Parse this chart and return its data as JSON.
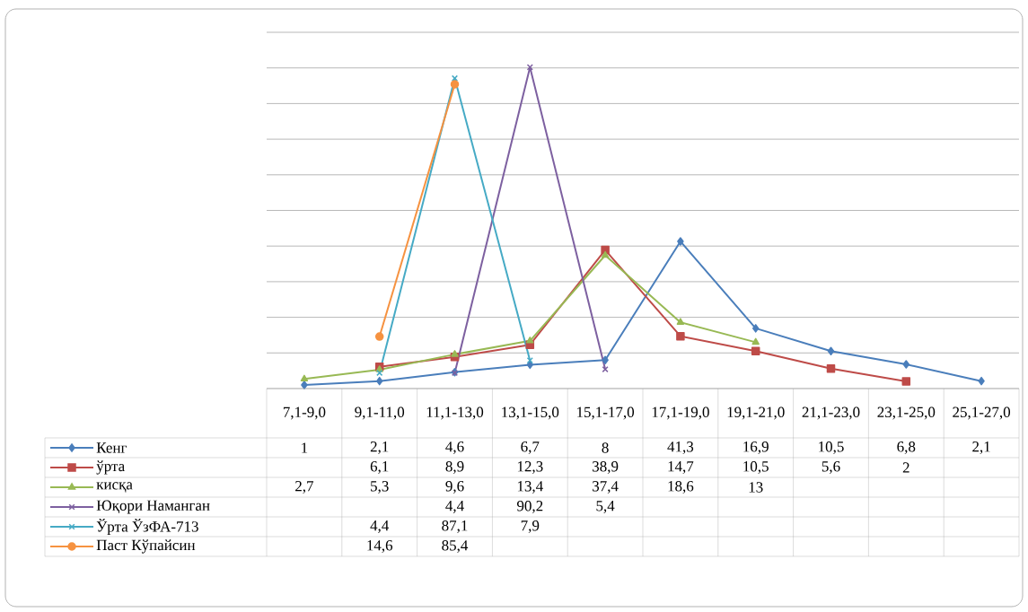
{
  "chart_data": {
    "type": "line",
    "categories": [
      "7,1-9,0",
      "9,1-11,0",
      "11,1-13,0",
      "13,1-15,0",
      "15,1-17,0",
      "17,1-19,0",
      "19,1-21,0",
      "21,1-23,0",
      "23,1-25,0",
      "25,1-27,0"
    ],
    "series": [
      {
        "name": "Кенг",
        "color": "#4a7ebb",
        "marker": "diamond",
        "values": [
          1,
          2.1,
          4.6,
          6.7,
          8,
          41.3,
          16.9,
          10.5,
          6.8,
          2.1
        ],
        "value_labels": [
          "1",
          "2,1",
          "4,6",
          "6,7",
          "8",
          "41,3",
          "16,9",
          "10,5",
          "6,8",
          "2,1"
        ]
      },
      {
        "name": "ўрта",
        "color": "#be4b48",
        "marker": "square",
        "values": [
          null,
          6.1,
          8.9,
          12.3,
          38.9,
          14.7,
          10.5,
          5.6,
          2,
          null
        ],
        "value_labels": [
          null,
          "6,1",
          "8,9",
          "12,3",
          "38,9",
          "14,7",
          "10,5",
          "5,6",
          "2",
          null
        ]
      },
      {
        "name": "кисқа",
        "color": "#98b954",
        "marker": "triangle",
        "values": [
          2.7,
          5.3,
          9.6,
          13.4,
          37.4,
          18.6,
          13,
          null,
          null,
          null
        ],
        "value_labels": [
          "2,7",
          "5,3",
          "9,6",
          "13,4",
          "37,4",
          "18,6",
          "13",
          null,
          null,
          null
        ]
      },
      {
        "name": "Юқори Наманган",
        "color": "#7d60a0",
        "marker": "cross",
        "values": [
          null,
          null,
          4.4,
          90.2,
          5.4,
          null,
          null,
          null,
          null,
          null
        ],
        "value_labels": [
          null,
          null,
          "4,4",
          "90,2",
          "5,4",
          null,
          null,
          null,
          null,
          null
        ]
      },
      {
        "name": "Ўрта ЎзФА-713",
        "color": "#46aac5",
        "marker": "cross",
        "values": [
          null,
          4.4,
          87.1,
          7.9,
          null,
          null,
          null,
          null,
          null,
          null
        ],
        "value_labels": [
          null,
          "4,4",
          "87,1",
          "7,9",
          null,
          null,
          null,
          null,
          null,
          null
        ]
      },
      {
        "name": "Паст Кўпайсин",
        "color": "#f69240",
        "marker": "circle",
        "values": [
          null,
          14.6,
          85.4,
          null,
          null,
          null,
          null,
          null,
          null,
          null
        ],
        "value_labels": [
          null,
          "14,6",
          "85,4",
          null,
          null,
          null,
          null,
          null,
          null,
          null
        ]
      }
    ],
    "ylim": [
      0,
      100
    ],
    "yticks": [
      {
        "value": 0,
        "label": null
      },
      {
        "value": 10,
        "label": null
      },
      {
        "value": 20,
        "label": null
      },
      {
        "value": 30,
        "label": null
      },
      {
        "value": 40,
        "label": null
      },
      {
        "value": 50,
        "label": null
      },
      {
        "value": 60,
        "label": null
      },
      {
        "value": 70,
        "label": null
      },
      {
        "value": 80,
        "label": null
      },
      {
        "value": 90,
        "label": null
      },
      {
        "value": 100,
        "label": null
      }
    ],
    "grid": "y",
    "tick_labels": "x",
    "legend": "bottom",
    "line_style": "solid"
  }
}
